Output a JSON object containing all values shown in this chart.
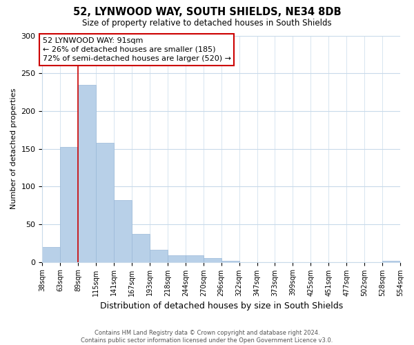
{
  "title": "52, LYNWOOD WAY, SOUTH SHIELDS, NE34 8DB",
  "subtitle": "Size of property relative to detached houses in South Shields",
  "xlabel": "Distribution of detached houses by size in South Shields",
  "ylabel": "Number of detached properties",
  "bar_values": [
    20,
    152,
    235,
    158,
    82,
    37,
    16,
    9,
    9,
    5,
    1,
    0,
    0,
    0,
    0,
    0,
    0,
    0,
    0,
    1
  ],
  "bin_labels": [
    "38sqm",
    "63sqm",
    "89sqm",
    "115sqm",
    "141sqm",
    "167sqm",
    "193sqm",
    "218sqm",
    "244sqm",
    "270sqm",
    "296sqm",
    "322sqm",
    "347sqm",
    "373sqm",
    "399sqm",
    "425sqm",
    "451sqm",
    "477sqm",
    "502sqm",
    "528sqm",
    "554sqm"
  ],
  "bar_color": "#b8d0e8",
  "bar_edge_color": "#9ab8d8",
  "vline_x_bar_index": 2,
  "vline_color": "#cc0000",
  "annotation_line1": "52 LYNWOOD WAY: 91sqm",
  "annotation_line2": "← 26% of detached houses are smaller (185)",
  "annotation_line3": "72% of semi-detached houses are larger (520) →",
  "ylim": [
    0,
    300
  ],
  "yticks": [
    0,
    50,
    100,
    150,
    200,
    250,
    300
  ],
  "footer_text": "Contains HM Land Registry data © Crown copyright and database right 2024.\nContains public sector information licensed under the Open Government Licence v3.0.",
  "background_color": "#ffffff",
  "grid_color": "#c8daea"
}
